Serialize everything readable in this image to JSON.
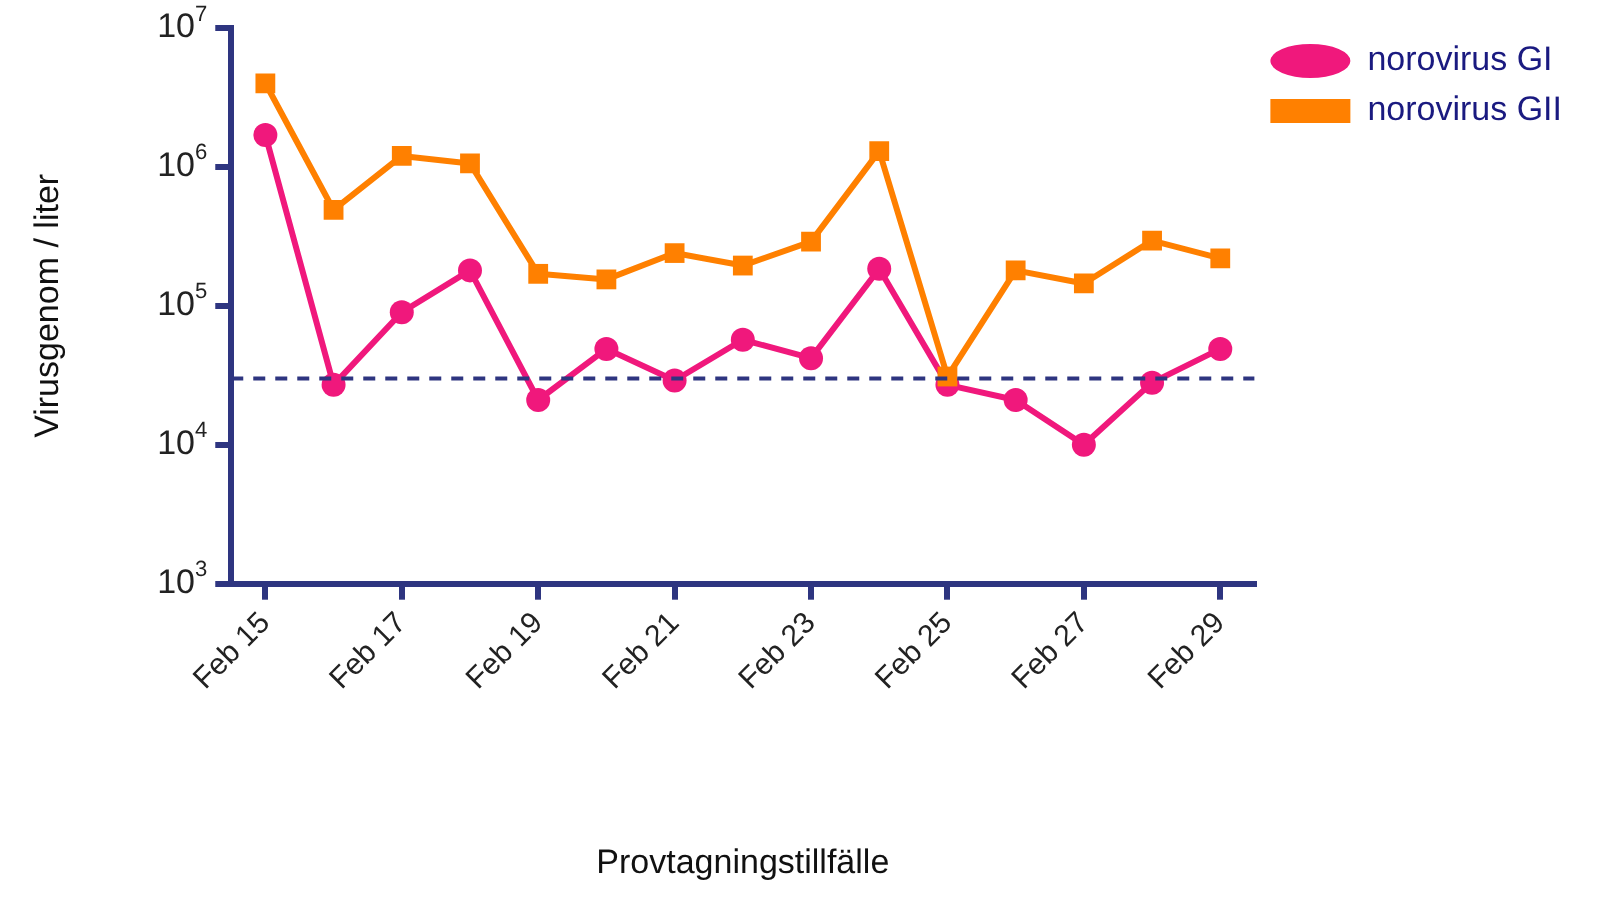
{
  "chart_data": {
    "type": "line",
    "xlabel": "Provtagningstillfälle",
    "ylabel": "Virusgenom / liter",
    "categories": [
      "Feb 15",
      null,
      "Feb 17",
      null,
      "Feb 19",
      null,
      "Feb 21",
      null,
      "Feb 23",
      null,
      "Feb 25",
      null,
      "Feb 27",
      null,
      "Feb 29"
    ],
    "series": [
      {
        "name": "norovirus GI",
        "color": "#f0187c",
        "marker": "circle",
        "values": [
          1700000,
          27000,
          90000,
          180000,
          21000,
          49000,
          29000,
          57000,
          42000,
          185000,
          27000,
          21000,
          10000,
          28000,
          49000
        ]
      },
      {
        "name": "norovirus GII",
        "color": "#ff8000",
        "marker": "square",
        "values": [
          4000000,
          490000,
          1200000,
          1060000,
          170000,
          155000,
          240000,
          195000,
          290000,
          1300000,
          31000,
          180000,
          145000,
          295000,
          220000
        ]
      }
    ],
    "log": "y",
    "ylim": [
      1000,
      10000000
    ],
    "yticks": [
      {
        "value": 1000,
        "label": "10$^{3}$"
      },
      {
        "value": 10000,
        "label": "10$^{4}$"
      },
      {
        "value": 100000,
        "label": "10$^{5}$"
      },
      {
        "value": 1000000,
        "label": "10$^{6}$"
      },
      {
        "value": 10000000,
        "label": "10$^{7}$"
      }
    ],
    "ref_lines": [
      {
        "axis": "y",
        "value": 30000,
        "color": "#2e3580",
        "line_style": "dashed"
      }
    ],
    "grid": false,
    "legend": "top right",
    "line_style": "solid"
  }
}
